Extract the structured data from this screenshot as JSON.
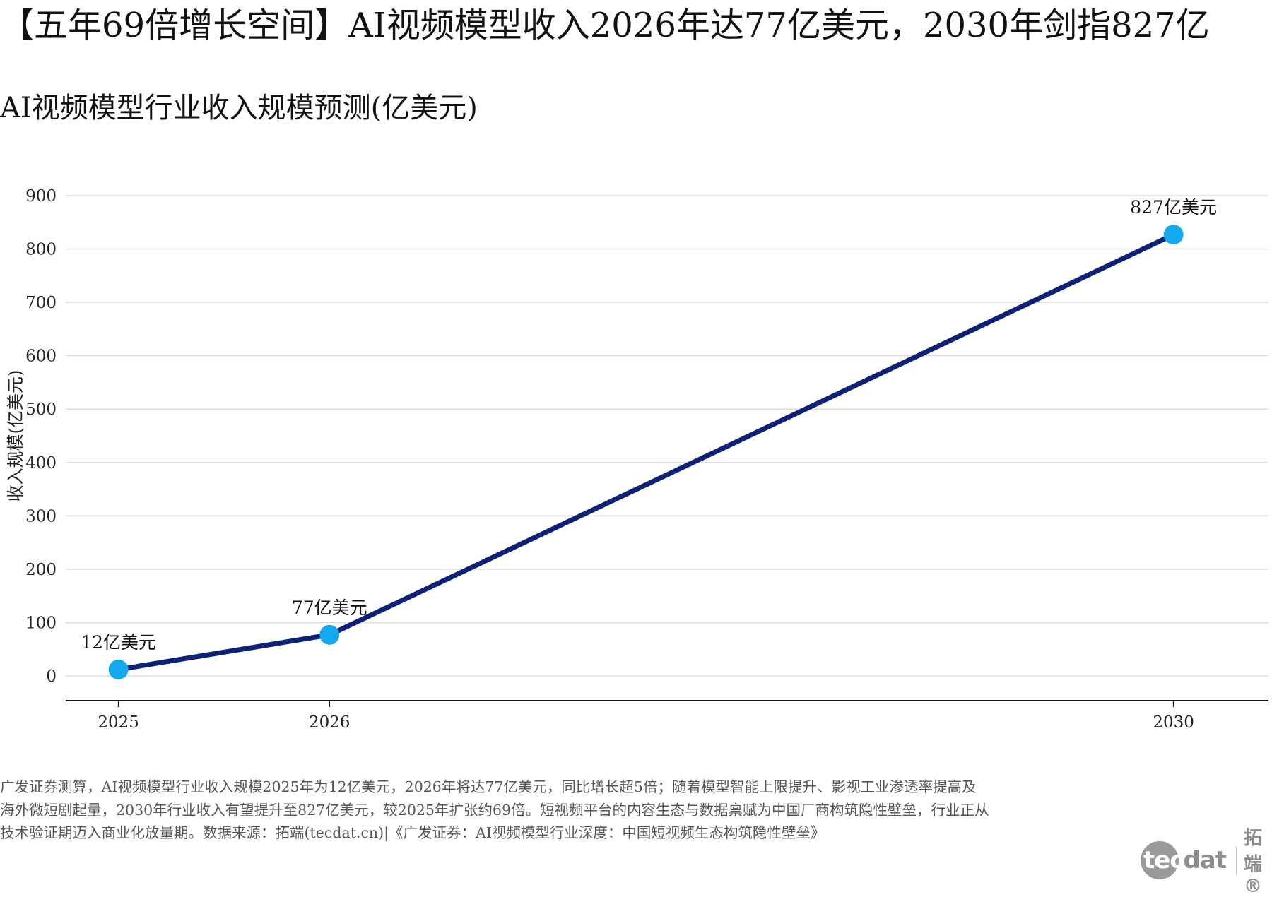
{
  "header": {
    "title": "【五年69倍增长空间】AI视频模型收入2026年达77亿美元，2030年剑指827亿",
    "subtitle": "AI视频模型行业收入规模预测(亿美元)"
  },
  "chart_data": {
    "type": "line",
    "categories": [
      "2025",
      "2026",
      "2030"
    ],
    "x": [
      2025,
      2026,
      2030
    ],
    "values": [
      12,
      77,
      827
    ],
    "point_labels": [
      "12亿美元",
      "77亿美元",
      "827亿美元"
    ],
    "ylabel": "收入规模(亿美元)",
    "xlabel": "",
    "ylim": [
      0,
      900
    ],
    "yticks": [
      "0",
      "100",
      "200",
      "300",
      "400",
      "500",
      "600",
      "700",
      "800",
      "900"
    ],
    "grid": true,
    "line_color": "#0d2277",
    "marker_color": "#14a8ef"
  },
  "footer": {
    "note": "广发证券测算，AI视频模型行业收入规模2025年为12亿美元，2026年将达77亿美元，同比增长超5倍；随着模型智能上限提升、影视工业渗透率提高及海外微短剧起量，2030年行业收入有望提升至827亿美元，较2025年扩张约69倍。短视频平台的内容生态与数据禀赋为中国厂商构筑隐性壁垒，行业正从技术验证期迈入商业化放量期。数据来源：拓端(tecdat.cn)|《广发证券：AI视频模型行业深度：中国短视频生态构筑隐性壁垒》",
    "logo_text_1": "tec",
    "logo_text_2": "dat",
    "logo_cn": "拓端®"
  }
}
